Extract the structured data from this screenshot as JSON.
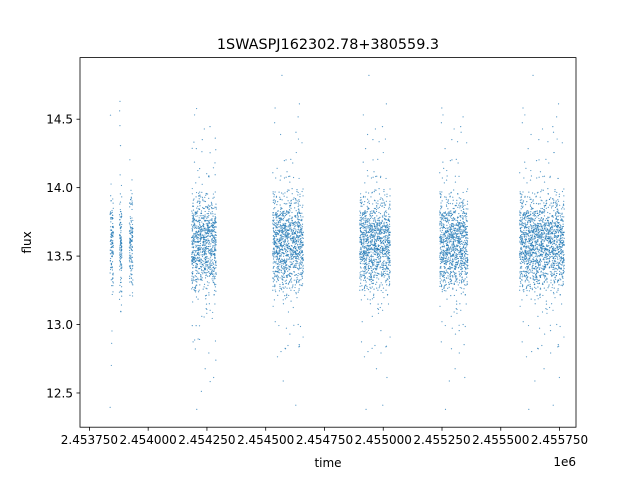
{
  "chart_data": {
    "type": "scatter",
    "title": "1SWASPJ162302.78+380559.3",
    "xlabel": "time",
    "ylabel": "flux",
    "x_offset_label": "1e6",
    "xlim": [
      2453710,
      2455820
    ],
    "ylim": [
      12.25,
      14.95
    ],
    "x_ticks": [
      2453750,
      2454000,
      2454250,
      2454500,
      2454750,
      2455000,
      2455250,
      2455500,
      2455750
    ],
    "x_tick_labels": [
      "2.453750",
      "2.454000",
      "2.454250",
      "2.454500",
      "2.454750",
      "2.455000",
      "2.455250",
      "2.455500",
      "2.455750"
    ],
    "y_ticks": [
      12.5,
      13.0,
      13.5,
      14.0,
      14.5
    ],
    "y_tick_labels": [
      "12.5",
      "13.0",
      "13.5",
      "14.0",
      "14.5"
    ],
    "grid": false,
    "legend": "none",
    "marker_color": "#1f77b4",
    "series": [
      {
        "season_ranges": [
          [
            2453838,
            2453852
          ],
          [
            2453878,
            2453888
          ],
          [
            2453920,
            2453935
          ],
          [
            2454185,
            2454290
          ],
          [
            2454530,
            2454660
          ],
          [
            2454900,
            2455030
          ],
          [
            2455240,
            2455360
          ],
          [
            2455580,
            2455770
          ]
        ],
        "center_flux": 13.6,
        "flux_range": [
          12.35,
          14.85
        ]
      }
    ]
  }
}
